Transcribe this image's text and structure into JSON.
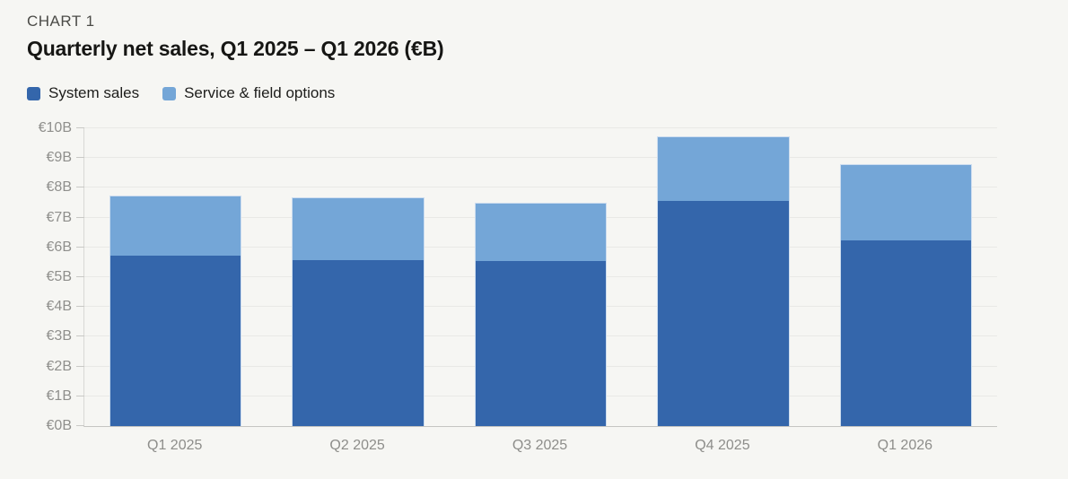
{
  "header": {
    "kicker": "CHART 1",
    "title": "Quarterly net sales, Q1 2025 – Q1 2026 (€B)"
  },
  "legend": {
    "items": [
      {
        "label": "System sales",
        "color": "#3466ab"
      },
      {
        "label": "Service & field options",
        "color": "#74a6d7"
      }
    ]
  },
  "chart_data": {
    "type": "bar",
    "stacked": true,
    "title": "Quarterly net sales, Q1 2025 – Q1 2026 (€B)",
    "xlabel": "",
    "ylabel": "",
    "ylim": [
      0,
      10
    ],
    "grid": true,
    "legend_position": "top-left",
    "currency_unit": "€B",
    "categories": [
      "Q1 2025",
      "Q2 2025",
      "Q3 2025",
      "Q4 2025",
      "Q1 2026"
    ],
    "series": [
      {
        "name": "System sales",
        "color": "#3466ab",
        "values": [
          5.74,
          5.6,
          5.55,
          7.57,
          6.27
        ]
      },
      {
        "name": "Service & field options",
        "color": "#74a6d7",
        "values": [
          2.0,
          2.09,
          1.96,
          2.15,
          2.52
        ]
      }
    ],
    "totals": [
      7.74,
      7.69,
      7.51,
      9.72,
      8.79
    ],
    "y_ticks": [
      "€0B",
      "€1B",
      "€2B",
      "€3B",
      "€4B",
      "€5B",
      "€6B",
      "€7B",
      "€8B",
      "€9B",
      "€10B"
    ]
  }
}
